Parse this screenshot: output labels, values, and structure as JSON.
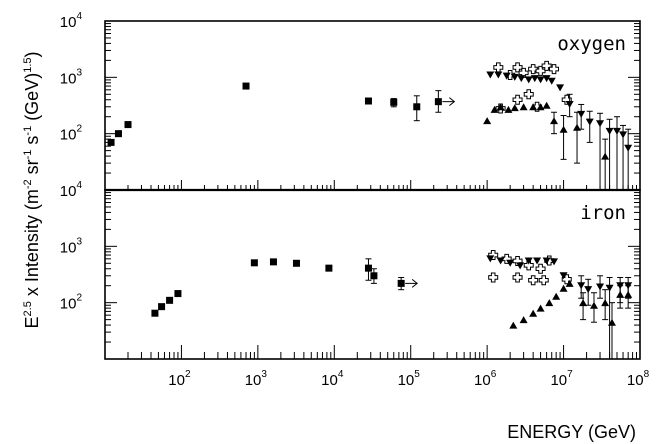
{
  "chart_data": {
    "type": "scatter",
    "xscale": "log",
    "yscale": "log",
    "xlabel": "ENERGY (GeV)",
    "ylabel": {
      "base": "E",
      "exp": "2.5",
      "mid": " x Intensity (m",
      "u1": "-2",
      " u1b": "",
      "sr": " sr",
      "u2": "-1",
      "s": " s",
      "u3": "-1",
      "gev": " (GeV)",
      "u4": "1.5",
      "close": ")"
    },
    "xlim": [
      10,
      100000000
    ],
    "x_tick_labels": [
      {
        "value": 100,
        "base": "10",
        "exp": "2"
      },
      {
        "value": 1000,
        "base": "10",
        "exp": "3"
      },
      {
        "value": 10000,
        "base": "10",
        "exp": "4"
      },
      {
        "value": 100000,
        "base": "10",
        "exp": "5"
      },
      {
        "value": 1000000,
        "base": "10",
        "exp": "6"
      },
      {
        "value": 10000000,
        "base": "10",
        "exp": "7"
      },
      {
        "value": 100000000,
        "base": "10",
        "exp": "8"
      }
    ],
    "panels": [
      {
        "label": "oxygen",
        "ylim": [
          10,
          10000
        ],
        "y_tick_labels": [
          {
            "value": 10000,
            "base": "10",
            "exp": "4"
          },
          {
            "value": 1000,
            "base": "10",
            "exp": "3"
          },
          {
            "value": 100,
            "base": "10",
            "exp": "2"
          }
        ],
        "series": [
          {
            "marker": "square",
            "points": [
              {
                "x": 12,
                "y": 70
              },
              {
                "x": 15,
                "y": 100
              },
              {
                "x": 20,
                "y": 145
              },
              {
                "x": 700,
                "y": 700
              },
              {
                "x": 28000,
                "y": 380
              },
              {
                "x": 60000,
                "y": 360,
                "ylo": 300,
                "yhi": 420
              },
              {
                "x": 120000,
                "y": 300,
                "ylo": 170,
                "yhi": 470
              },
              {
                "x": 230000,
                "y": 370,
                "ylo": 240,
                "yhi": 580,
                "arrow": true
              }
            ]
          },
          {
            "marker": "cross",
            "points": [
              {
                "x": 1400000,
                "y": 1500
              },
              {
                "x": 2000000,
                "y": 1100
              },
              {
                "x": 2500000,
                "y": 1500
              },
              {
                "x": 3000000,
                "y": 1200
              },
              {
                "x": 4000000,
                "y": 1400
              },
              {
                "x": 5000000,
                "y": 1300
              },
              {
                "x": 6000000,
                "y": 1600
              },
              {
                "x": 7500000,
                "y": 1400
              },
              {
                "x": 1500000,
                "y": 280
              },
              {
                "x": 2500000,
                "y": 400
              },
              {
                "x": 3500000,
                "y": 500
              },
              {
                "x": 4500000,
                "y": 300
              },
              {
                "x": 11000000,
                "y": 400
              }
            ]
          },
          {
            "marker": "triangle-down",
            "points": [
              {
                "x": 1100000,
                "y": 1100
              },
              {
                "x": 1400000,
                "y": 1100
              },
              {
                "x": 1800000,
                "y": 1050
              },
              {
                "x": 2300000,
                "y": 1000
              },
              {
                "x": 2800000,
                "y": 950
              },
              {
                "x": 3500000,
                "y": 900
              },
              {
                "x": 4200000,
                "y": 950
              },
              {
                "x": 5000000,
                "y": 900
              },
              {
                "x": 6000000,
                "y": 950
              },
              {
                "x": 7000000,
                "y": 850
              },
              {
                "x": 9000000,
                "y": 650
              },
              {
                "x": 12000000,
                "y": 330,
                "ylo": 200,
                "yhi": 500
              },
              {
                "x": 17000000,
                "y": 220,
                "ylo": 120,
                "yhi": 330
              },
              {
                "x": 22000000,
                "y": 160,
                "ylo": 70,
                "yhi": 250
              },
              {
                "x": 30000000,
                "y": 150,
                "ylo": 10,
                "yhi": 230
              },
              {
                "x": 40000000,
                "y": 110,
                "ylo": 10,
                "yhi": 180
              },
              {
                "x": 50000000,
                "y": 110,
                "ylo": 10,
                "yhi": 200
              },
              {
                "x": 60000000,
                "y": 95,
                "ylo": 10,
                "yhi": 140
              },
              {
                "x": 70000000,
                "y": 55,
                "ylo": 10,
                "yhi": 120
              }
            ]
          },
          {
            "marker": "triangle-up",
            "points": [
              {
                "x": 1000000,
                "y": 170
              },
              {
                "x": 1250000,
                "y": 270
              },
              {
                "x": 1500000,
                "y": 300
              },
              {
                "x": 1900000,
                "y": 270
              },
              {
                "x": 2300000,
                "y": 290
              },
              {
                "x": 3000000,
                "y": 300
              },
              {
                "x": 4000000,
                "y": 300
              },
              {
                "x": 5000000,
                "y": 300
              },
              {
                "x": 6000000,
                "y": 320
              },
              {
                "x": 7500000,
                "y": 170,
                "ylo": 100,
                "yhi": 240
              },
              {
                "x": 10000000,
                "y": 120,
                "ylo": 35,
                "yhi": 210
              },
              {
                "x": 15000000,
                "y": 130,
                "ylo": 30,
                "yhi": 240
              },
              {
                "x": 35000000,
                "y": 40,
                "ylo": 10,
                "yhi": 80
              }
            ]
          }
        ]
      },
      {
        "label": "iron",
        "ylim": [
          10,
          10000
        ],
        "y_tick_labels": [
          {
            "value": 10000,
            "base": "10",
            "exp": "4"
          },
          {
            "value": 1000,
            "base": "10",
            "exp": "3"
          },
          {
            "value": 100,
            "base": "10",
            "exp": "2"
          }
        ],
        "series": [
          {
            "marker": "square",
            "points": [
              {
                "x": 45,
                "y": 65
              },
              {
                "x": 55,
                "y": 85
              },
              {
                "x": 70,
                "y": 110
              },
              {
                "x": 90,
                "y": 145
              },
              {
                "x": 900,
                "y": 510
              },
              {
                "x": 1600,
                "y": 530
              },
              {
                "x": 3200,
                "y": 500
              },
              {
                "x": 8500,
                "y": 410
              },
              {
                "x": 28000,
                "y": 410,
                "ylo": 250,
                "yhi": 600
              },
              {
                "x": 33000,
                "y": 300,
                "ylo": 220,
                "yhi": 400
              },
              {
                "x": 75000,
                "y": 220,
                "ylo": 170,
                "yhi": 280,
                "arrow": true
              }
            ]
          },
          {
            "marker": "cross",
            "points": [
              {
                "x": 1200000,
                "y": 700
              },
              {
                "x": 1800000,
                "y": 600
              },
              {
                "x": 2500000,
                "y": 550
              },
              {
                "x": 3500000,
                "y": 460
              },
              {
                "x": 5000000,
                "y": 400
              },
              {
                "x": 6500000,
                "y": 560
              },
              {
                "x": 1200000,
                "y": 280
              },
              {
                "x": 2500000,
                "y": 280
              },
              {
                "x": 4000000,
                "y": 250
              },
              {
                "x": 5500000,
                "y": 250
              },
              {
                "x": 11000000,
                "y": 260
              }
            ]
          },
          {
            "marker": "triangle-down",
            "points": [
              {
                "x": 1100000,
                "y": 600
              },
              {
                "x": 1500000,
                "y": 550
              },
              {
                "x": 2000000,
                "y": 500
              },
              {
                "x": 2700000,
                "y": 450
              },
              {
                "x": 3500000,
                "y": 550
              },
              {
                "x": 4500000,
                "y": 550
              },
              {
                "x": 6000000,
                "y": 550
              },
              {
                "x": 7500000,
                "y": 530
              },
              {
                "x": 10000000,
                "y": 300
              },
              {
                "x": 17000000,
                "y": 200,
                "ylo": 120,
                "yhi": 300
              },
              {
                "x": 21000000,
                "y": 170,
                "ylo": 90,
                "yhi": 260
              },
              {
                "x": 30000000,
                "y": 190,
                "ylo": 120,
                "yhi": 300
              },
              {
                "x": 40000000,
                "y": 180,
                "ylo": 10,
                "yhi": 280
              },
              {
                "x": 55000000,
                "y": 200,
                "ylo": 100,
                "yhi": 280
              },
              {
                "x": 70000000,
                "y": 200,
                "ylo": 120,
                "yhi": 280
              }
            ]
          },
          {
            "marker": "triangle-up",
            "points": [
              {
                "x": 2200000,
                "y": 40
              },
              {
                "x": 3000000,
                "y": 50
              },
              {
                "x": 4000000,
                "y": 65
              },
              {
                "x": 5000000,
                "y": 80
              },
              {
                "x": 6500000,
                "y": 100
              },
              {
                "x": 8000000,
                "y": 130
              },
              {
                "x": 10000000,
                "y": 180
              },
              {
                "x": 12000000,
                "y": 220
              },
              {
                "x": 18000000,
                "y": 100,
                "ylo": 50,
                "yhi": 150
              },
              {
                "x": 25000000,
                "y": 90,
                "ylo": 45,
                "yhi": 150
              },
              {
                "x": 35000000,
                "y": 100,
                "ylo": 50,
                "yhi": 170
              },
              {
                "x": 43000000,
                "y": 45,
                "ylo": 10,
                "yhi": 100
              },
              {
                "x": 55000000,
                "y": 140,
                "ylo": 80,
                "yhi": 200
              },
              {
                "x": 70000000,
                "y": 140,
                "ylo": 80,
                "yhi": 200
              }
            ]
          }
        ]
      }
    ]
  }
}
